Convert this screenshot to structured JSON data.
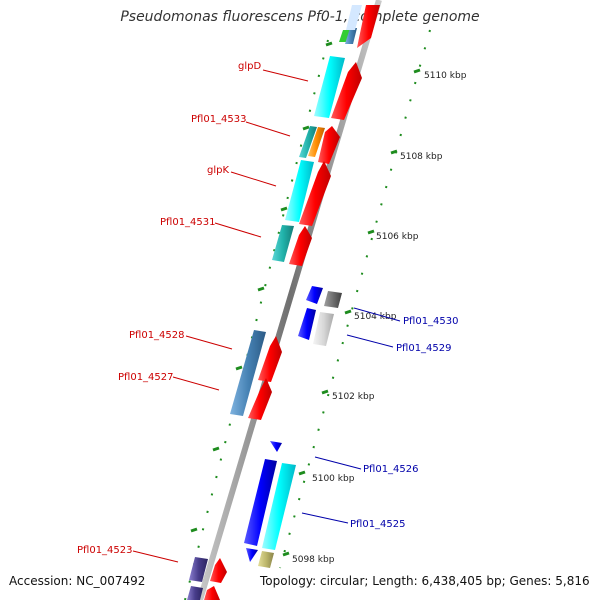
{
  "title": "Pseudomonas fluorescens Pf0-1, complete genome",
  "footer": {
    "accession": "Accession: NC_007492",
    "summary": "Topology: circular; Length: 6,438,405 bp; Genes: 5,816"
  },
  "ticks": [
    "5110 kbp",
    "5108 kbp",
    "5106 kbp",
    "5104 kbp",
    "5102 kbp",
    "5100 kbp",
    "5098 kbp"
  ],
  "genes_reverse": [
    "glpD",
    "Pfl01_4533",
    "glpK",
    "Pfl01_4531",
    "Pfl01_4528",
    "Pfl01_4527",
    "Pfl01_4523"
  ],
  "genes_forward": [
    "Pfl01_4530",
    "Pfl01_4529",
    "Pfl01_4526",
    "Pfl01_4525"
  ],
  "colors": {
    "reverse_label": "#cc0000",
    "forward_label": "#0000aa",
    "cds_red": "#ff0000",
    "cds_cyan": "#00ffff",
    "cds_blue": "#0000ff",
    "cds_steelblue": "#4682b4",
    "cds_orange": "#ff8c00",
    "backbone": "#909090"
  }
}
